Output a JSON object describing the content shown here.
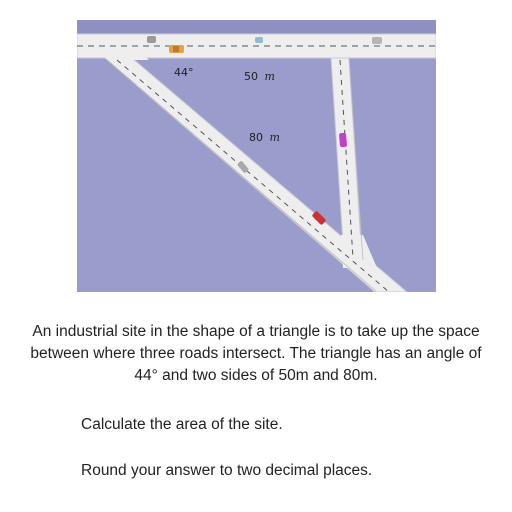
{
  "diagram": {
    "angle_label": "44°",
    "side_a_value": "50",
    "side_a_unit": "m",
    "side_b_value": "80",
    "side_b_unit": "m",
    "colors": {
      "land": "#9a9ccb",
      "road": "#eeeeee",
      "road_edge": "#c9c9d6",
      "lane_marking": "#555555"
    }
  },
  "problem": {
    "text": "An industrial site in the shape of a triangle is to take up the space between where three roads intersect. The triangle has an angle of 44° and two sides of 50m and 80m.",
    "question": "Calculate the area of the site.",
    "instruction": "Round your answer to two decimal places."
  }
}
